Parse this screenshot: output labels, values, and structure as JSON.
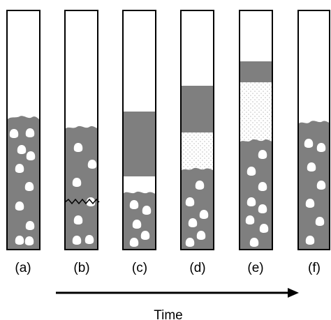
{
  "colors": {
    "foam": "#7f7f7f",
    "bubble": "#ffffff",
    "liquid_dots": "#9a9a9a",
    "outline": "#000000",
    "arrow": "#000000"
  },
  "panels": [
    {
      "id": "a",
      "label": "(a)"
    },
    {
      "id": "b",
      "label": "(b)"
    },
    {
      "id": "c",
      "label": "(c)"
    },
    {
      "id": "d",
      "label": "(d)"
    },
    {
      "id": "e",
      "label": "(e)"
    },
    {
      "id": "f",
      "label": "(f)"
    }
  ],
  "axis": {
    "label": "Time"
  }
}
